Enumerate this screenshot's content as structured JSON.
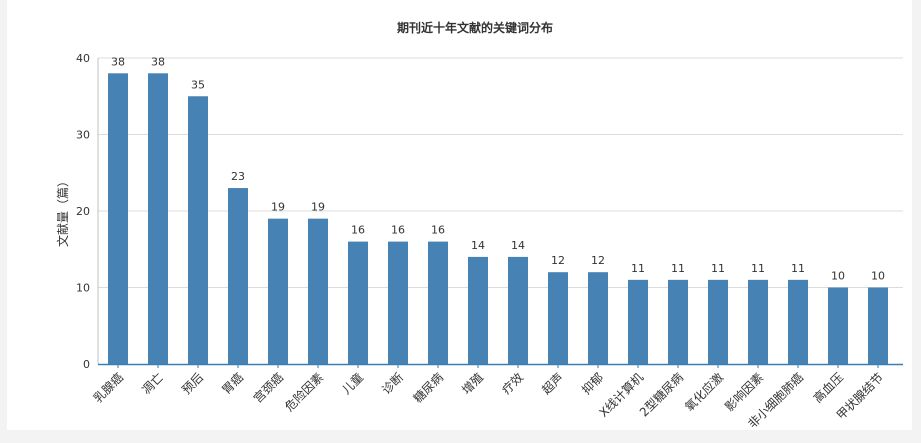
{
  "chart_data": {
    "type": "bar",
    "title": "期刊近十年文献的关键词分布",
    "ylabel": "文献量（篇）",
    "xlabel": "",
    "ylim": [
      0,
      40
    ],
    "yticks": [
      0,
      10,
      20,
      30,
      40
    ],
    "grid": true,
    "bar_color": "#4682b4",
    "categories": [
      "乳腺癌",
      "凋亡",
      "预后",
      "胃癌",
      "宫颈癌",
      "危险因素",
      "儿童",
      "诊断",
      "糖尿病",
      "增殖",
      "疗效",
      "超声",
      "抑郁",
      "X线计算机",
      "2型糖尿病",
      "氧化应激",
      "影响因素",
      "非小细胞肺癌",
      "高血压",
      "甲状腺结节"
    ],
    "values": [
      38,
      38,
      35,
      23,
      19,
      19,
      16,
      16,
      16,
      14,
      14,
      12,
      12,
      11,
      11,
      11,
      11,
      11,
      10,
      10
    ]
  }
}
